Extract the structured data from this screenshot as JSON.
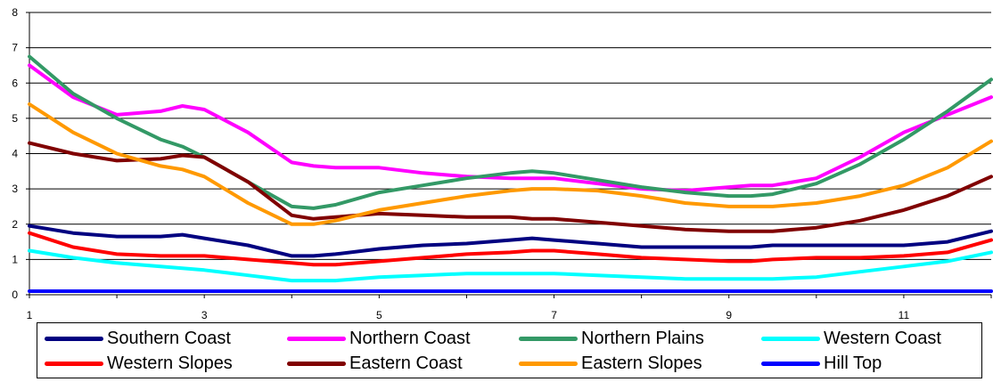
{
  "chart_data": {
    "type": "line",
    "title": "",
    "xlabel": "",
    "ylabel": "",
    "xlim": [
      1,
      12
    ],
    "ylim": [
      0,
      8
    ],
    "x_ticks": [
      "1",
      "3",
      "5",
      "7",
      "9",
      "11"
    ],
    "y_ticks": [
      "0",
      "1",
      "2",
      "3",
      "4",
      "5",
      "6",
      "7",
      "8"
    ],
    "grid": "horizontal",
    "legend_position": "bottom",
    "x": [
      1,
      1.5,
      2,
      2.5,
      2.75,
      3,
      3.5,
      4,
      4.25,
      4.5,
      5,
      5.5,
      6,
      6.5,
      6.75,
      7,
      7.5,
      8,
      8.5,
      9,
      9.25,
      9.5,
      10,
      10.5,
      11,
      11.5,
      12
    ],
    "series": [
      {
        "name": "Southern Coast",
        "color": "#000080",
        "values": [
          1.95,
          1.75,
          1.65,
          1.65,
          1.7,
          1.6,
          1.4,
          1.1,
          1.1,
          1.15,
          1.3,
          1.4,
          1.45,
          1.55,
          1.6,
          1.55,
          1.45,
          1.35,
          1.35,
          1.35,
          1.35,
          1.4,
          1.4,
          1.4,
          1.4,
          1.5,
          1.8
        ]
      },
      {
        "name": "Northern Coast",
        "color": "#ff00ff",
        "values": [
          6.5,
          5.6,
          5.1,
          5.2,
          5.35,
          5.25,
          4.6,
          3.75,
          3.65,
          3.6,
          3.6,
          3.45,
          3.35,
          3.3,
          3.3,
          3.3,
          3.15,
          3.0,
          2.95,
          3.05,
          3.1,
          3.1,
          3.3,
          3.9,
          4.6,
          5.1,
          5.6
        ]
      },
      {
        "name": "Northern Plains",
        "color": "#339966",
        "values": [
          6.75,
          5.7,
          5.0,
          4.4,
          4.2,
          3.9,
          3.2,
          2.5,
          2.45,
          2.55,
          2.9,
          3.1,
          3.3,
          3.45,
          3.5,
          3.45,
          3.25,
          3.05,
          2.9,
          2.8,
          2.8,
          2.85,
          3.15,
          3.7,
          4.4,
          5.2,
          6.1
        ]
      },
      {
        "name": "Western Coast",
        "color": "#00ffff",
        "values": [
          1.25,
          1.05,
          0.9,
          0.8,
          0.75,
          0.7,
          0.55,
          0.4,
          0.4,
          0.4,
          0.5,
          0.55,
          0.6,
          0.6,
          0.6,
          0.6,
          0.55,
          0.5,
          0.45,
          0.45,
          0.45,
          0.45,
          0.5,
          0.65,
          0.8,
          0.95,
          1.2
        ]
      },
      {
        "name": "Western Slopes",
        "color": "#ff0000",
        "values": [
          1.75,
          1.35,
          1.15,
          1.1,
          1.1,
          1.1,
          1.0,
          0.9,
          0.85,
          0.85,
          0.95,
          1.05,
          1.15,
          1.2,
          1.25,
          1.25,
          1.15,
          1.05,
          1.0,
          0.95,
          0.95,
          1.0,
          1.05,
          1.05,
          1.1,
          1.2,
          1.55
        ]
      },
      {
        "name": "Eastern Coast",
        "color": "#800000",
        "values": [
          4.3,
          4.0,
          3.8,
          3.85,
          3.95,
          3.9,
          3.2,
          2.25,
          2.15,
          2.2,
          2.3,
          2.25,
          2.2,
          2.2,
          2.15,
          2.15,
          2.05,
          1.95,
          1.85,
          1.8,
          1.8,
          1.8,
          1.9,
          2.1,
          2.4,
          2.8,
          3.35
        ]
      },
      {
        "name": "Eastern Slopes",
        "color": "#ff9900",
        "values": [
          5.4,
          4.6,
          4.0,
          3.65,
          3.55,
          3.35,
          2.6,
          2.0,
          2.0,
          2.1,
          2.4,
          2.6,
          2.8,
          2.95,
          3.0,
          3.0,
          2.95,
          2.8,
          2.6,
          2.5,
          2.5,
          2.5,
          2.6,
          2.8,
          3.1,
          3.6,
          4.35
        ]
      },
      {
        "name": "Hill Top",
        "color": "#0000ff",
        "values": [
          0.1,
          0.1,
          0.1,
          0.1,
          0.1,
          0.1,
          0.1,
          0.1,
          0.1,
          0.1,
          0.1,
          0.1,
          0.1,
          0.1,
          0.1,
          0.1,
          0.1,
          0.1,
          0.1,
          0.1,
          0.1,
          0.1,
          0.1,
          0.1,
          0.1,
          0.1,
          0.1
        ]
      }
    ]
  }
}
